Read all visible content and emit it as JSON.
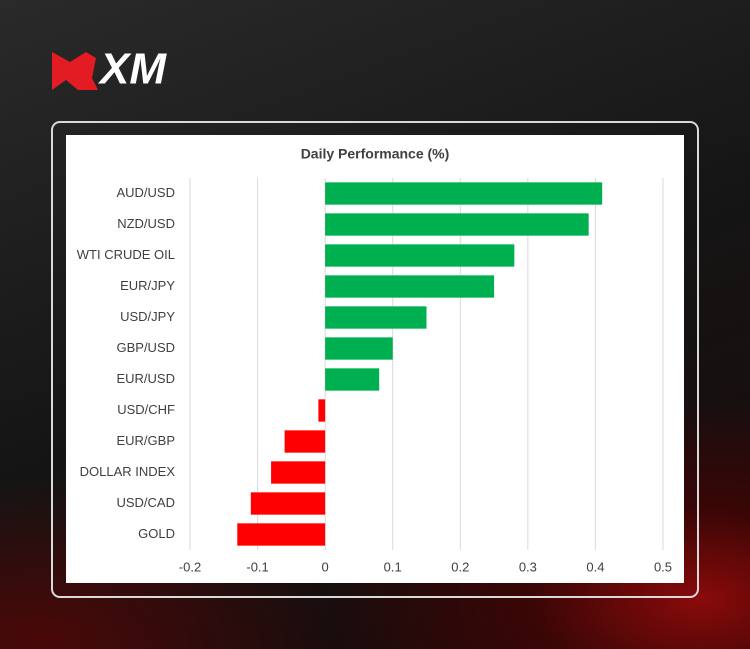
{
  "brand": {
    "logo": "XM"
  },
  "chart_data": {
    "type": "bar",
    "orientation": "horizontal",
    "title": "Daily Performance (%)",
    "categories": [
      "AUD/USD",
      "NZD/USD",
      "WTI CRUDE OIL",
      "EUR/JPY",
      "USD/JPY",
      "GBP/USD",
      "EUR/USD",
      "USD/CHF",
      "EUR/GBP",
      "DOLLAR INDEX",
      "USD/CAD",
      "GOLD"
    ],
    "values": [
      0.41,
      0.39,
      0.28,
      0.25,
      0.15,
      0.1,
      0.08,
      -0.01,
      -0.06,
      -0.08,
      -0.11,
      -0.13
    ],
    "color_positive": "#00b050",
    "color_negative": "#ff0000",
    "xlim": [
      -0.2,
      0.5
    ],
    "xticks": [
      -0.2,
      -0.1,
      0,
      0.1,
      0.2,
      0.3,
      0.4,
      0.5
    ],
    "grid": true
  }
}
